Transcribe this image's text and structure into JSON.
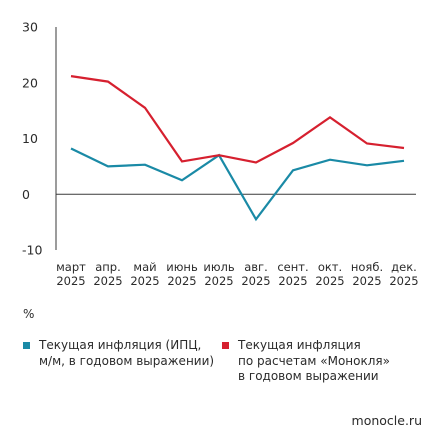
{
  "chart_data": {
    "type": "line",
    "categories": [
      [
        "март",
        "2025"
      ],
      [
        "апр.",
        "2025"
      ],
      [
        "май",
        "2025"
      ],
      [
        "июнь",
        "2025"
      ],
      [
        "июль",
        "2025"
      ],
      [
        "авг.",
        "2025"
      ],
      [
        "сент.",
        "2025"
      ],
      [
        "окт.",
        "2025"
      ],
      [
        "нояб.",
        "2025"
      ],
      [
        "дек.",
        "2025"
      ]
    ],
    "y_ticks": [
      -10,
      0,
      10,
      20,
      30
    ],
    "ylim": [
      -10,
      30
    ],
    "ylabel": "%",
    "grid": false,
    "series": [
      {
        "name": "Текущая инфляция (ИПЦ, м/м, в годовом выражении)",
        "color": "#1a8aa6",
        "values": [
          8.2,
          5.0,
          5.3,
          2.5,
          7.0,
          -4.5,
          4.3,
          6.2,
          5.2,
          6.0
        ]
      },
      {
        "name": "Текущая инфляция по расчетам «Монокля» в годовом выражении",
        "color": "#d6202f",
        "values": [
          21.2,
          20.2,
          15.5,
          5.9,
          7.0,
          5.7,
          9.2,
          13.8,
          9.1,
          8.3
        ]
      }
    ]
  },
  "legend": {
    "items": [
      {
        "lines": [
          "Текущая инфляция (ИПЦ,",
          "м/м, в годовом выражении)"
        ],
        "color": "#1a8aa6"
      },
      {
        "lines": [
          "Текущая инфляция",
          "по расчетам «Монокля»",
          "в годовом выражении"
        ],
        "color": "#d6202f"
      }
    ]
  },
  "unit_label": "%",
  "source": "monocle.ru"
}
